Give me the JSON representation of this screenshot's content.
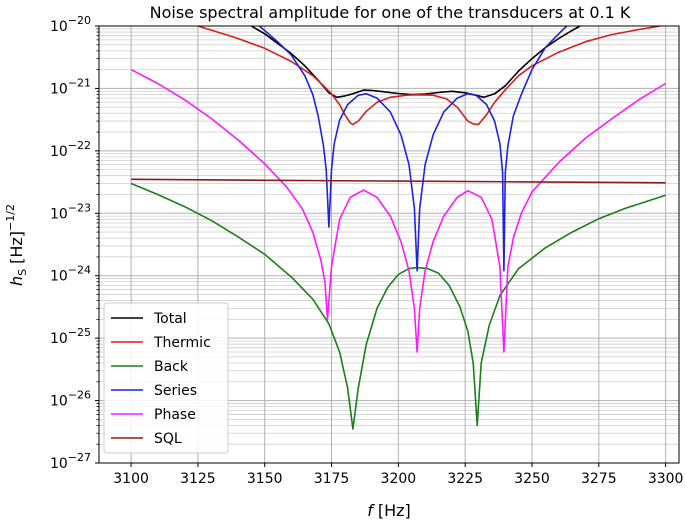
{
  "chart_data": {
    "type": "line",
    "title": "Noise spectral amplitude for one of the transducers at 0.1 K",
    "xlabel": {
      "symbol": "f",
      "unit": "[Hz]"
    },
    "ylabel": {
      "symbol": "h",
      "subscript": "S",
      "unit": "[Hz]",
      "exponent": "−1/2"
    },
    "x_scale": "linear",
    "y_scale": "log",
    "xlim": [
      3088,
      3305
    ],
    "ylim": [
      1e-27,
      1e-20
    ],
    "xticks": [
      3100,
      3125,
      3150,
      3175,
      3200,
      3225,
      3250,
      3275,
      3300
    ],
    "xtick_labels": [
      "3100",
      "3125",
      "3150",
      "3175",
      "3200",
      "3225",
      "3250",
      "3275",
      "3300"
    ],
    "yticks": [
      -27,
      -26,
      -25,
      -24,
      -23,
      -22,
      -21,
      -20
    ],
    "ytick_base": "10",
    "ytick_exponents": [
      "−27",
      "−26",
      "−25",
      "−24",
      "−23",
      "−22",
      "−21",
      "−20"
    ],
    "grid": true,
    "legend_position": "lower-left",
    "series": [
      {
        "name": "Total",
        "color": "#000000",
        "points": [
          [
            3145,
            1e-20
          ],
          [
            3150,
            7.5e-21
          ],
          [
            3155,
            5.2e-21
          ],
          [
            3160,
            3.6e-21
          ],
          [
            3165,
            2.3e-21
          ],
          [
            3170,
            1.35e-21
          ],
          [
            3174,
            8.5e-22
          ],
          [
            3177,
            7.2e-22
          ],
          [
            3180,
            7.6e-22
          ],
          [
            3183,
            8.2e-22
          ],
          [
            3187,
            9.4e-22
          ],
          [
            3190,
            9.3e-22
          ],
          [
            3195,
            8.8e-22
          ],
          [
            3200,
            8.3e-22
          ],
          [
            3205,
            8e-22
          ],
          [
            3210,
            8.1e-22
          ],
          [
            3215,
            8.6e-22
          ],
          [
            3220,
            9e-22
          ],
          [
            3225,
            8.5e-22
          ],
          [
            3229,
            7.8e-22
          ],
          [
            3232,
            7.2e-22
          ],
          [
            3236,
            8.2e-22
          ],
          [
            3240,
            1.1e-21
          ],
          [
            3245,
            1.9e-21
          ],
          [
            3250,
            3e-21
          ],
          [
            3255,
            4.5e-21
          ],
          [
            3260,
            6.3e-21
          ],
          [
            3265,
            8.5e-21
          ],
          [
            3268,
            1e-20
          ]
        ]
      },
      {
        "name": "Thermic",
        "color": "#d62020",
        "points": [
          [
            3125,
            1e-20
          ],
          [
            3130,
            8.6e-21
          ],
          [
            3140,
            6.3e-21
          ],
          [
            3150,
            4.4e-21
          ],
          [
            3160,
            2.7e-21
          ],
          [
            3168,
            1.6e-21
          ],
          [
            3172,
            1.1e-21
          ],
          [
            3175,
            8.2e-22
          ],
          [
            3178,
            5.5e-22
          ],
          [
            3180,
            3.8e-22
          ],
          [
            3182,
            2.8e-22
          ],
          [
            3183,
            2.65e-22
          ],
          [
            3185,
            3e-22
          ],
          [
            3188,
            4.3e-22
          ],
          [
            3192,
            6e-22
          ],
          [
            3197,
            7.2e-22
          ],
          [
            3203,
            7.8e-22
          ],
          [
            3207,
            7.9e-22
          ],
          [
            3213,
            7.8e-22
          ],
          [
            3218,
            6.8e-22
          ],
          [
            3222,
            5e-22
          ],
          [
            3226,
            3e-22
          ],
          [
            3228,
            2.7e-22
          ],
          [
            3230,
            2.65e-22
          ],
          [
            3233,
            3.8e-22
          ],
          [
            3236,
            6e-22
          ],
          [
            3240,
            9.5e-22
          ],
          [
            3245,
            1.6e-21
          ],
          [
            3250,
            2.3e-21
          ],
          [
            3260,
            3.8e-21
          ],
          [
            3270,
            5.6e-21
          ],
          [
            3280,
            7.3e-21
          ],
          [
            3290,
            8.8e-21
          ],
          [
            3298,
            1e-20
          ]
        ]
      },
      {
        "name": "Back",
        "color": "#1a7f1a",
        "points": [
          [
            3100,
            3e-23
          ],
          [
            3110,
            2e-23
          ],
          [
            3120,
            1.28e-23
          ],
          [
            3130,
            7.7e-24
          ],
          [
            3140,
            4.2e-24
          ],
          [
            3150,
            2.2e-24
          ],
          [
            3160,
            9.5e-25
          ],
          [
            3168,
            4.2e-25
          ],
          [
            3174,
            1.7e-25
          ],
          [
            3178,
            6e-26
          ],
          [
            3181,
            1.6e-26
          ],
          [
            3183,
            3.5e-27
          ],
          [
            3185,
            1.6e-26
          ],
          [
            3188,
            8e-26
          ],
          [
            3192,
            3e-25
          ],
          [
            3196,
            6.5e-25
          ],
          [
            3200,
            1.05e-24
          ],
          [
            3204,
            1.3e-24
          ],
          [
            3207,
            1.35e-24
          ],
          [
            3211,
            1.3e-24
          ],
          [
            3215,
            1.1e-24
          ],
          [
            3219,
            7e-25
          ],
          [
            3223,
            3.2e-25
          ],
          [
            3226,
            1.3e-25
          ],
          [
            3228,
            4e-26
          ],
          [
            3229.5,
            4e-27
          ],
          [
            3231,
            4e-26
          ],
          [
            3234,
            1.6e-25
          ],
          [
            3238,
            4.8e-25
          ],
          [
            3245,
            1.3e-24
          ],
          [
            3255,
            2.8e-24
          ],
          [
            3265,
            5e-24
          ],
          [
            3275,
            8.2e-24
          ],
          [
            3285,
            1.2e-23
          ],
          [
            3300,
            1.95e-23
          ]
        ]
      },
      {
        "name": "Series",
        "color": "#1f22e0",
        "points": [
          [
            3148,
            1e-20
          ],
          [
            3155,
            5.5e-21
          ],
          [
            3160,
            3.4e-21
          ],
          [
            3165,
            1.6e-21
          ],
          [
            3168,
            8e-22
          ],
          [
            3170,
            3.6e-22
          ],
          [
            3172,
            1.2e-22
          ],
          [
            3173,
            5e-23
          ],
          [
            3174,
            6e-24
          ],
          [
            3175,
            5e-23
          ],
          [
            3176,
            1.3e-22
          ],
          [
            3178,
            3.1e-22
          ],
          [
            3181,
            5.5e-22
          ],
          [
            3185,
            7.8e-22
          ],
          [
            3188,
            8.2e-22
          ],
          [
            3192,
            7e-22
          ],
          [
            3197,
            4.2e-22
          ],
          [
            3201,
            1.8e-22
          ],
          [
            3204,
            6e-23
          ],
          [
            3206,
            1.2e-23
          ],
          [
            3207,
            1.2e-24
          ],
          [
            3208,
            1.2e-23
          ],
          [
            3210,
            6e-23
          ],
          [
            3213,
            1.8e-22
          ],
          [
            3217,
            4.2e-22
          ],
          [
            3222,
            7e-22
          ],
          [
            3226,
            8.2e-22
          ],
          [
            3229,
            7.8e-22
          ],
          [
            3233,
            5.5e-22
          ],
          [
            3236,
            3e-22
          ],
          [
            3238,
            1.3e-22
          ],
          [
            3239,
            4.5e-23
          ],
          [
            3239.5,
            1.2e-24
          ],
          [
            3240,
            4.5e-23
          ],
          [
            3241,
            1.2e-22
          ],
          [
            3243,
            3.6e-22
          ],
          [
            3246,
            8e-22
          ],
          [
            3250,
            2e-21
          ],
          [
            3255,
            4.5e-21
          ],
          [
            3260,
            7.5e-21
          ],
          [
            3263,
            1e-20
          ]
        ]
      },
      {
        "name": "Phase",
        "color": "#ff19ff",
        "points": [
          [
            3100,
            2e-21
          ],
          [
            3110,
            1.2e-21
          ],
          [
            3120,
            6.6e-22
          ],
          [
            3130,
            3.3e-22
          ],
          [
            3140,
            1.5e-22
          ],
          [
            3150,
            6.2e-23
          ],
          [
            3158,
            2.7e-23
          ],
          [
            3164,
            1.2e-23
          ],
          [
            3168,
            5e-24
          ],
          [
            3171,
            1.8e-24
          ],
          [
            3172.5,
            8e-25
          ],
          [
            3173.5,
            2e-25
          ],
          [
            3175,
            1.4e-24
          ],
          [
            3178,
            8e-24
          ],
          [
            3182,
            1.8e-23
          ],
          [
            3187,
            2.35e-23
          ],
          [
            3192,
            1.8e-23
          ],
          [
            3197,
            9e-24
          ],
          [
            3201,
            3.5e-24
          ],
          [
            3204,
            1.2e-24
          ],
          [
            3206,
            3e-25
          ],
          [
            3207,
            6e-26
          ],
          [
            3208,
            3e-25
          ],
          [
            3210,
            1.2e-24
          ],
          [
            3213,
            3.5e-24
          ],
          [
            3217,
            9e-24
          ],
          [
            3222,
            1.8e-23
          ],
          [
            3226,
            2.3e-23
          ],
          [
            3231,
            1.8e-23
          ],
          [
            3235,
            8e-24
          ],
          [
            3238,
            1.4e-24
          ],
          [
            3239.5,
            6e-26
          ],
          [
            3241,
            1.4e-24
          ],
          [
            3243,
            4e-24
          ],
          [
            3246,
            1e-23
          ],
          [
            3250,
            2.2e-23
          ],
          [
            3260,
            6.5e-23
          ],
          [
            3270,
            1.6e-22
          ],
          [
            3280,
            3.3e-22
          ],
          [
            3290,
            6.6e-22
          ],
          [
            3300,
            1.2e-21
          ]
        ]
      },
      {
        "name": "SQL",
        "color": "#8b1c1c",
        "points": [
          [
            3100,
            3.5e-23
          ],
          [
            3150,
            3.38e-23
          ],
          [
            3200,
            3.28e-23
          ],
          [
            3250,
            3.18e-23
          ],
          [
            3300,
            3.08e-23
          ]
        ]
      }
    ]
  }
}
